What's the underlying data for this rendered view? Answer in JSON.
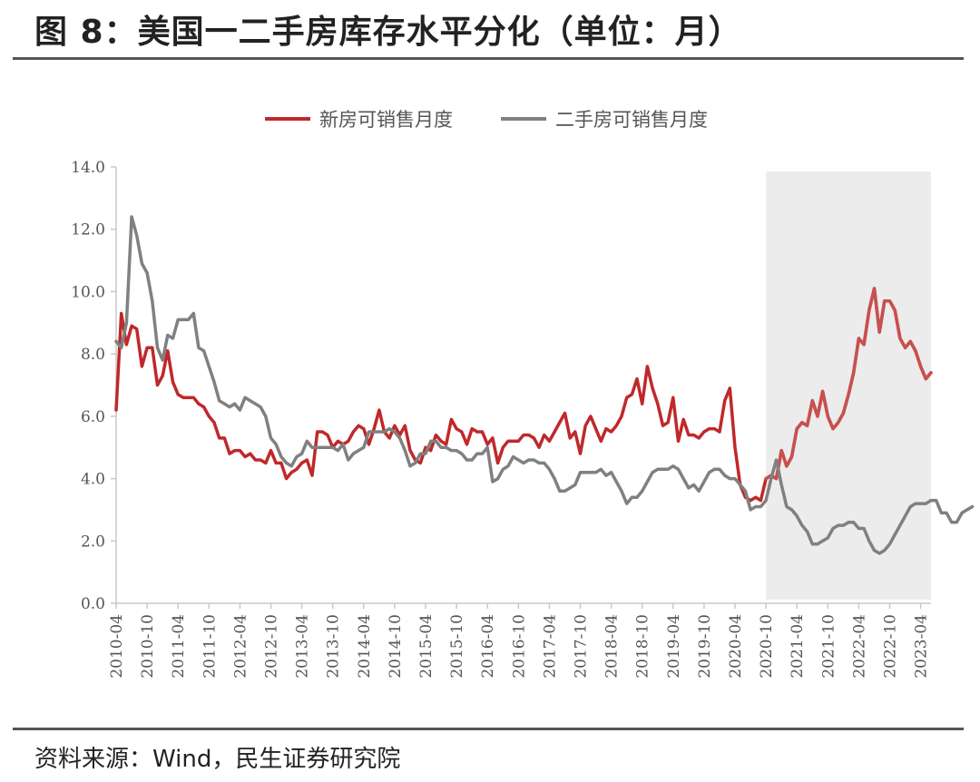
{
  "header": {
    "title": "图 8：美国一二手房库存水平分化（单位：月）"
  },
  "footer": {
    "source": "资料来源：Wind，民生证券研究院"
  },
  "chart_data": {
    "type": "line",
    "title": "",
    "xlabel": "",
    "ylabel": "",
    "ylim": [
      0,
      14
    ],
    "yticks": [
      "0.0",
      "2.0",
      "4.0",
      "6.0",
      "8.0",
      "10.0",
      "12.0",
      "14.0"
    ],
    "xticks": [
      "2010-04",
      "2010-10",
      "2011-04",
      "2011-10",
      "2012-04",
      "2012-10",
      "2013-04",
      "2013-10",
      "2014-04",
      "2014-10",
      "2015-04",
      "2015-10",
      "2016-04",
      "2016-10",
      "2017-04",
      "2017-10",
      "2018-04",
      "2018-10",
      "2019-04",
      "2019-10",
      "2020-04",
      "2020-10",
      "2021-04",
      "2021-10",
      "2022-04",
      "2022-10",
      "2023-04"
    ],
    "x_start": "2010-04",
    "shaded_region": [
      "2020-10",
      "2023-06"
    ],
    "legend_position": "top-center",
    "colors": {
      "new_home": "#c0282a",
      "new_home_shaded": "#c85050",
      "existing_home": "#808080",
      "shade": "#ececec",
      "axis": "#c8c8c8"
    },
    "series": [
      {
        "name": "新房可销售月度",
        "color": "#c0282a",
        "values": [
          6.2,
          9.3,
          8.3,
          8.9,
          8.8,
          7.6,
          8.2,
          8.2,
          7.0,
          7.3,
          8.1,
          7.1,
          6.7,
          6.6,
          6.6,
          6.6,
          6.4,
          6.3,
          6.0,
          5.8,
          5.3,
          5.3,
          4.8,
          4.9,
          4.9,
          4.7,
          4.8,
          4.6,
          4.6,
          4.5,
          4.9,
          4.5,
          4.5,
          4.0,
          4.2,
          4.3,
          4.5,
          4.6,
          4.1,
          5.5,
          5.5,
          5.4,
          5.0,
          5.2,
          5.1,
          5.2,
          5.5,
          5.7,
          5.6,
          5.1,
          5.6,
          6.2,
          5.5,
          5.3,
          5.7,
          5.4,
          5.7,
          4.9,
          4.6,
          4.5,
          5.0,
          4.9,
          5.4,
          5.2,
          5.1,
          5.9,
          5.6,
          5.5,
          5.1,
          5.6,
          5.5,
          5.5,
          5.1,
          5.3,
          4.5,
          5.0,
          5.2,
          5.2,
          5.2,
          5.4,
          5.4,
          5.3,
          5.0,
          5.4,
          5.2,
          5.5,
          5.8,
          6.1,
          5.3,
          5.5,
          4.8,
          5.7,
          6.0,
          5.6,
          5.2,
          5.6,
          5.5,
          5.7,
          6.0,
          6.6,
          6.7,
          7.2,
          6.4,
          7.6,
          6.9,
          6.4,
          5.7,
          5.8,
          6.6,
          5.2,
          5.9,
          5.4,
          5.4,
          5.3,
          5.5,
          5.6,
          5.6,
          5.5,
          6.5,
          6.9,
          5.0,
          3.8,
          3.4,
          3.3,
          3.4,
          3.3,
          4.0,
          4.1,
          4.0,
          4.9,
          4.4,
          4.7,
          5.6,
          5.8,
          5.7,
          6.5,
          6.0,
          6.8,
          6.0,
          5.6,
          5.8,
          6.1,
          6.7,
          7.4,
          8.5,
          8.3,
          9.4,
          10.1,
          8.7,
          9.7,
          9.7,
          9.4,
          8.5,
          8.2,
          8.4,
          8.1,
          7.6,
          7.2,
          7.4
        ]
      },
      {
        "name": "二手房可销售月度",
        "color": "#808080",
        "values": [
          8.4,
          8.2,
          9.0,
          12.4,
          11.8,
          10.9,
          10.6,
          9.7,
          8.2,
          7.8,
          8.6,
          8.5,
          9.1,
          9.1,
          9.1,
          9.3,
          8.2,
          8.1,
          7.6,
          7.1,
          6.5,
          6.4,
          6.3,
          6.4,
          6.2,
          6.6,
          6.5,
          6.4,
          6.3,
          6.0,
          5.3,
          5.1,
          4.7,
          4.5,
          4.4,
          4.7,
          4.8,
          5.2,
          5.0,
          5.0,
          5.0,
          5.0,
          5.0,
          4.9,
          5.1,
          4.6,
          4.8,
          4.9,
          5.0,
          5.5,
          5.5,
          5.5,
          5.5,
          5.6,
          5.5,
          5.3,
          4.9,
          4.4,
          4.5,
          4.8,
          4.8,
          5.2,
          5.2,
          5.0,
          5.0,
          4.9,
          4.9,
          4.8,
          4.6,
          4.6,
          4.8,
          4.8,
          5.0,
          3.9,
          4.0,
          4.3,
          4.4,
          4.7,
          4.6,
          4.5,
          4.6,
          4.6,
          4.5,
          4.5,
          4.3,
          4.0,
          3.6,
          3.6,
          3.7,
          3.8,
          4.2,
          4.2,
          4.2,
          4.2,
          4.3,
          4.1,
          4.2,
          3.9,
          3.6,
          3.2,
          3.4,
          3.4,
          3.6,
          3.9,
          4.2,
          4.3,
          4.3,
          4.3,
          4.4,
          4.3,
          4.0,
          3.7,
          3.8,
          3.6,
          3.9,
          4.2,
          4.3,
          4.3,
          4.1,
          4.0,
          4.0,
          3.8,
          3.6,
          3.0,
          3.1,
          3.1,
          3.3,
          4.0,
          4.6,
          3.8,
          3.1,
          3.0,
          2.8,
          2.5,
          2.3,
          1.9,
          1.9,
          2.0,
          2.1,
          2.4,
          2.5,
          2.5,
          2.6,
          2.6,
          2.4,
          2.4,
          2.0,
          1.7,
          1.6,
          1.7,
          1.9,
          2.2,
          2.5,
          2.8,
          3.1,
          3.2,
          3.2,
          3.2,
          3.3,
          3.3,
          2.9,
          2.9,
          2.6,
          2.6,
          2.9,
          3.0,
          3.1
        ]
      }
    ]
  }
}
